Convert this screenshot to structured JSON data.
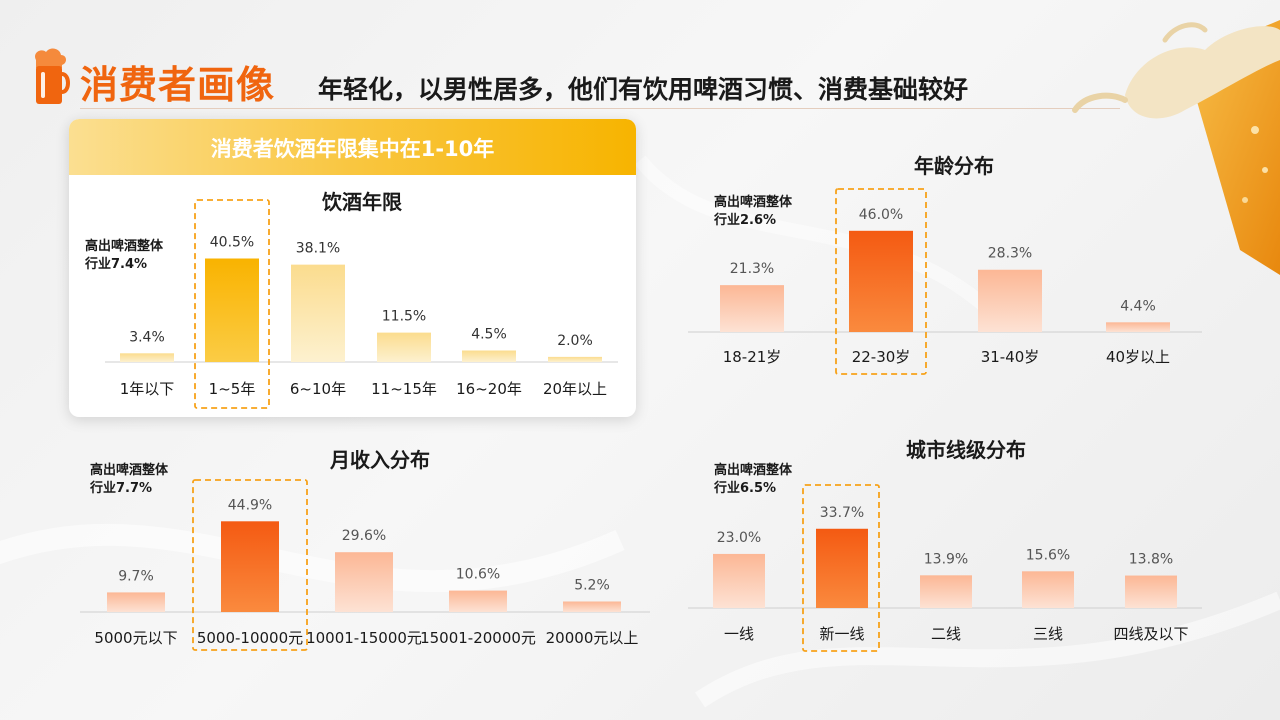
{
  "header": {
    "title": "消费者画像",
    "subtitle": "年轻化，以男性居多，他们有饮用啤酒习惯、消费基础较好"
  },
  "card_banner": "消费者饮酒年限集中在1-10年",
  "colors": {
    "accent": "#f0650f",
    "yellow_highlight": "#f9b300",
    "yellow_light": "#fbe3a5",
    "orange_highlight": "#f45a12",
    "orange_light": "#fcc3a6",
    "dash_border": "#f7a21a"
  },
  "chart_data": [
    {
      "id": "drinking-years",
      "type": "bar",
      "title": "饮酒年限",
      "note": [
        "高出啤酒整体",
        "行业7.4%"
      ],
      "categories": [
        "1年以下",
        "1~5年",
        "6~10年",
        "11~15年",
        "16~20年",
        "20年以上"
      ],
      "values": [
        3.4,
        40.5,
        38.1,
        11.5,
        4.5,
        2.0
      ],
      "labels": [
        "3.4%",
        "40.5%",
        "38.1%",
        "11.5%",
        "4.5%",
        "2.0%"
      ],
      "highlight_index": 1,
      "ylim": [
        0,
        45
      ],
      "ylabel": "",
      "xlabel": ""
    },
    {
      "id": "age",
      "type": "bar",
      "title": "年龄分布",
      "note": [
        "高出啤酒整体",
        "行业2.6%"
      ],
      "categories": [
        "18-21岁",
        "22-30岁",
        "31-40岁",
        "40岁以上"
      ],
      "values": [
        21.3,
        46.0,
        28.3,
        4.4
      ],
      "labels": [
        "21.3%",
        "46.0%",
        "28.3%",
        "4.4%"
      ],
      "highlight_index": 1,
      "ylim": [
        0,
        50
      ],
      "ylabel": "",
      "xlabel": ""
    },
    {
      "id": "income",
      "type": "bar",
      "title": "月收入分布",
      "note": [
        "高出啤酒整体",
        "行业7.7%"
      ],
      "categories": [
        "5000元以下",
        "5000-10000元",
        "10001-15000元",
        "15001-20000元",
        "20000元以上"
      ],
      "values": [
        9.7,
        44.9,
        29.6,
        10.6,
        5.2
      ],
      "labels": [
        "9.7%",
        "44.9%",
        "29.6%",
        "10.6%",
        "5.2%"
      ],
      "highlight_index": 1,
      "ylim": [
        0,
        50
      ],
      "ylabel": "",
      "xlabel": ""
    },
    {
      "id": "city-tier",
      "type": "bar",
      "title": "城市线级分布",
      "note": [
        "高出啤酒整体",
        "行业6.5%"
      ],
      "categories": [
        "一线",
        "新一线",
        "二线",
        "三线",
        "四线及以下"
      ],
      "values": [
        23.0,
        33.7,
        13.9,
        15.6,
        13.8
      ],
      "labels": [
        "23.0%",
        "33.7%",
        "13.9%",
        "15.6%",
        "13.8%"
      ],
      "highlight_index": 1,
      "ylim": [
        0,
        37
      ],
      "ylabel": "",
      "xlabel": ""
    }
  ]
}
